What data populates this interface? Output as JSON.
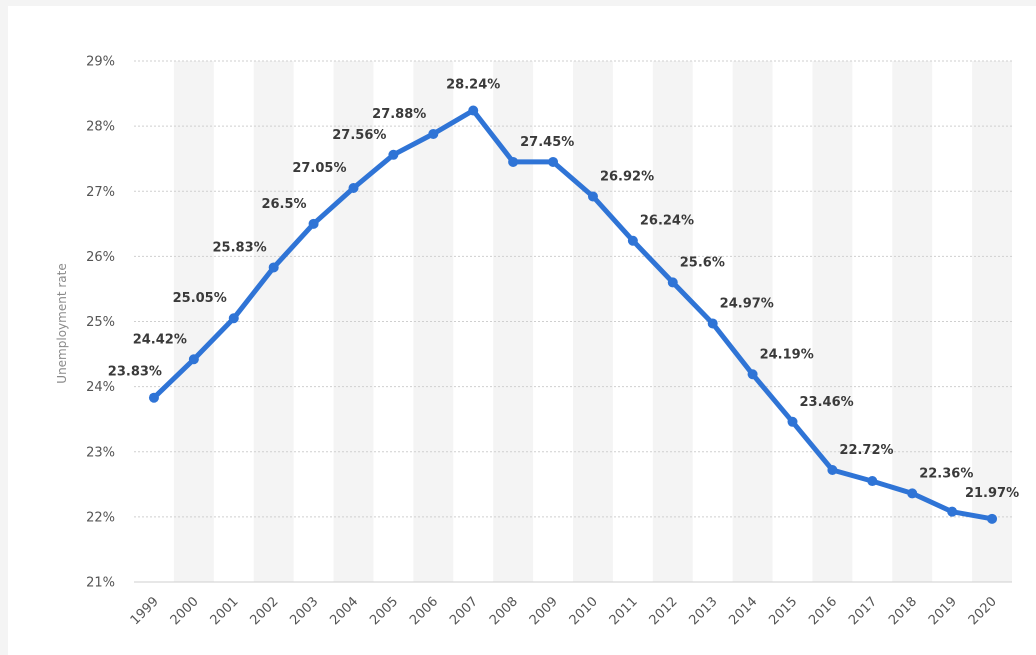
{
  "chart_data": {
    "type": "line",
    "title": "",
    "xlabel": "",
    "ylabel": "Unemployment rate",
    "x": [
      "1999",
      "2000",
      "2001",
      "2002",
      "2003",
      "2004",
      "2005",
      "2006",
      "2007",
      "2008",
      "2009",
      "2010",
      "2011",
      "2012",
      "2013",
      "2014",
      "2015",
      "2016",
      "2017",
      "2018",
      "2019",
      "2020"
    ],
    "values": [
      23.83,
      24.42,
      25.05,
      25.83,
      26.5,
      27.05,
      27.56,
      27.88,
      28.24,
      27.45,
      27.45,
      26.92,
      26.24,
      25.6,
      24.97,
      24.19,
      23.46,
      22.72,
      22.55,
      22.36,
      22.08,
      21.97
    ],
    "data_labels": [
      "23.83%",
      "24.42%",
      "25.05%",
      "25.83%",
      "26.5%",
      "27.05%",
      "27.56%",
      "27.88%",
      "28.24%",
      "27.45%",
      "",
      "26.92%",
      "26.24%",
      "25.6%",
      "24.97%",
      "24.19%",
      "23.46%",
      "22.72%",
      "",
      "22.36%",
      "",
      "21.97%"
    ],
    "y_ticks": [
      "21%",
      "22%",
      "23%",
      "24%",
      "25%",
      "26%",
      "27%",
      "28%",
      "29%"
    ],
    "ylim": [
      21,
      29
    ],
    "grid": true,
    "legend": "none",
    "colors": {
      "line": "#2f74d6",
      "band": "#f4f4f4",
      "grid": "#cfcfcf"
    }
  }
}
